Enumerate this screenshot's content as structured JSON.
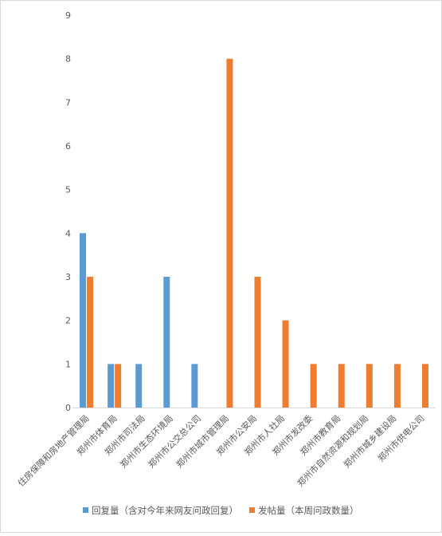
{
  "chart_data": {
    "type": "bar",
    "title": "",
    "xlabel": "",
    "ylabel": "",
    "ylim": [
      0,
      9
    ],
    "yticks": [
      "0",
      "1",
      "2",
      "3",
      "4",
      "5",
      "6",
      "7",
      "8",
      "9"
    ],
    "grid": false,
    "legend_position": "bottom",
    "categories": [
      "住房保障和房地产管理局",
      "郑州市体育局",
      "郑州市司法局",
      "郑州市生态环境局",
      "郑州市公交总公司",
      "郑州市城市管理局",
      "郑州市公安局",
      "郑州市人社局",
      "郑州市发改委",
      "郑州市教育局",
      "郑州市自然资源和规划局",
      "郑州市城乡建设局",
      "郑州市供电公司"
    ],
    "series": [
      {
        "name": "回复量（含对今年来网友问政回复）",
        "color": "#5b9bd5",
        "values": [
          4,
          1,
          1,
          3,
          1,
          0,
          0,
          0,
          0,
          0,
          0,
          0,
          0
        ]
      },
      {
        "name": "发帖量（本周问政数量）",
        "color": "#ed7d31",
        "values": [
          3,
          1,
          0,
          0,
          0,
          8,
          3,
          2,
          1,
          1,
          1,
          1,
          1
        ]
      }
    ]
  }
}
